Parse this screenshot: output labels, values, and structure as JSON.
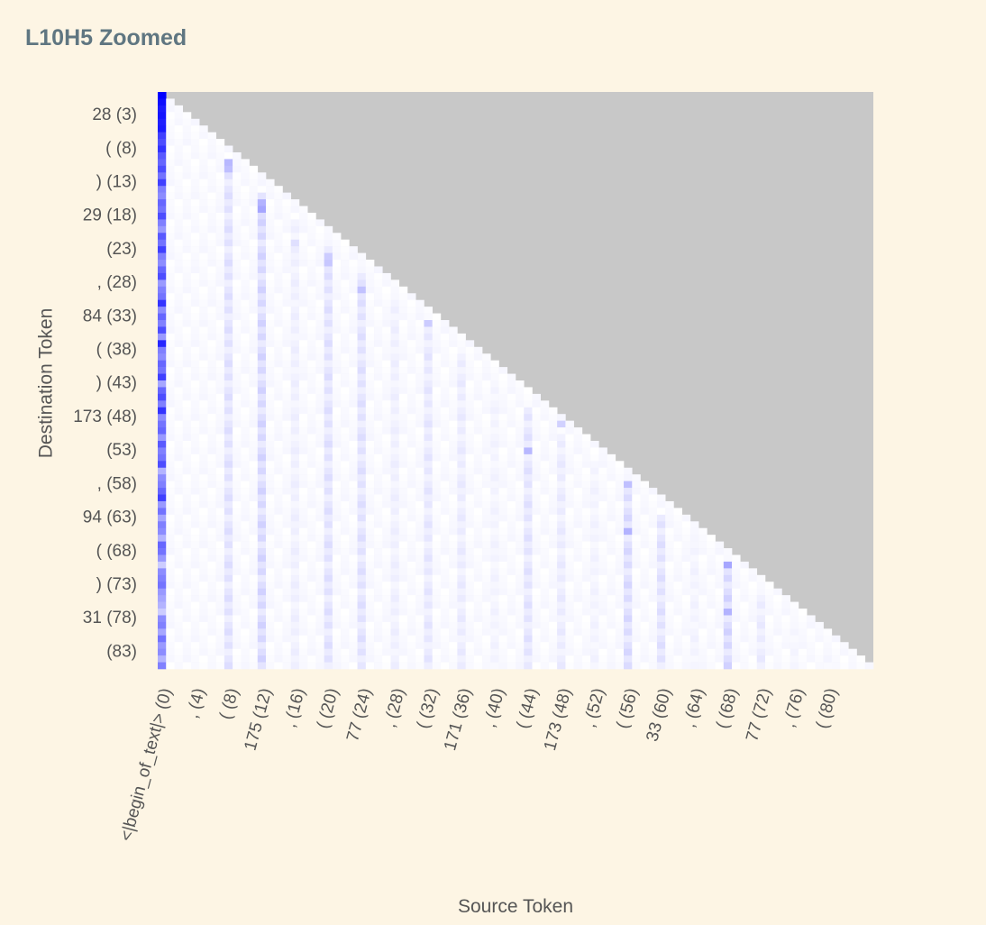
{
  "title": "L10H5 Zoomed",
  "chart_data": {
    "type": "heatmap",
    "title": "L10H5 Zoomed",
    "xlabel": "Source Token",
    "ylabel": "Destination Token",
    "n_tokens": 86,
    "masked_color": "#c8c8c8",
    "low_color": "#ffffff",
    "high_color": "#0000ff",
    "y_ticks": [
      {
        "index": 3,
        "label": "28 (3)"
      },
      {
        "index": 8,
        "label": "( (8)"
      },
      {
        "index": 13,
        "label": ") (13)"
      },
      {
        "index": 18,
        "label": "29 (18)"
      },
      {
        "index": 23,
        "label": "(23)"
      },
      {
        "index": 28,
        "label": ", (28)"
      },
      {
        "index": 33,
        "label": "84 (33)"
      },
      {
        "index": 38,
        "label": "( (38)"
      },
      {
        "index": 43,
        "label": ") (43)"
      },
      {
        "index": 48,
        "label": "173 (48)"
      },
      {
        "index": 53,
        "label": "(53)"
      },
      {
        "index": 58,
        "label": ", (58)"
      },
      {
        "index": 63,
        "label": "94 (63)"
      },
      {
        "index": 68,
        "label": "( (68)"
      },
      {
        "index": 73,
        "label": ") (73)"
      },
      {
        "index": 78,
        "label": "31 (78)"
      },
      {
        "index": 83,
        "label": "(83)"
      }
    ],
    "x_ticks": [
      {
        "index": 0,
        "label": "<|begin_of_text|> (0)"
      },
      {
        "index": 4,
        "label": ", (4)"
      },
      {
        "index": 8,
        "label": "( (8)"
      },
      {
        "index": 12,
        "label": "175 (12)"
      },
      {
        "index": 16,
        "label": ", (16)"
      },
      {
        "index": 20,
        "label": "( (20)"
      },
      {
        "index": 24,
        "label": "77 (24)"
      },
      {
        "index": 28,
        "label": ", (28)"
      },
      {
        "index": 32,
        "label": "( (32)"
      },
      {
        "index": 36,
        "label": "171 (36)"
      },
      {
        "index": 40,
        "label": ", (40)"
      },
      {
        "index": 44,
        "label": "( (44)"
      },
      {
        "index": 48,
        "label": "173 (48)"
      },
      {
        "index": 52,
        "label": ", (52)"
      },
      {
        "index": 56,
        "label": "( (56)"
      },
      {
        "index": 60,
        "label": "33 (60)"
      },
      {
        "index": 64,
        "label": ", (64)"
      },
      {
        "index": 68,
        "label": "( (68)"
      },
      {
        "index": 72,
        "label": "77 (72)"
      },
      {
        "index": 76,
        "label": ", (76)"
      },
      {
        "index": 80,
        "label": "( (80)"
      }
    ],
    "bos_column_weights": [
      1.0,
      0.95,
      0.9,
      0.92,
      0.88,
      0.9,
      0.75,
      0.7,
      0.8,
      0.65,
      0.6,
      0.7,
      0.55,
      0.75,
      0.5,
      0.45,
      0.6,
      0.55,
      0.7,
      0.5,
      0.4,
      0.65,
      0.55,
      0.75,
      0.5,
      0.45,
      0.6,
      0.7,
      0.4,
      0.5,
      0.55,
      0.8,
      0.45,
      0.6,
      0.5,
      0.7,
      0.4,
      0.85,
      0.5,
      0.45,
      0.6,
      0.55,
      0.75,
      0.35,
      0.6,
      0.7,
      0.5,
      0.8,
      0.45,
      0.55,
      0.6,
      0.4,
      0.65,
      0.5,
      0.55,
      0.7,
      0.3,
      0.45,
      0.5,
      0.6,
      0.75,
      0.4,
      0.55,
      0.35,
      0.5,
      0.45,
      0.3,
      0.6,
      0.55,
      0.4,
      0.2,
      0.45,
      0.5,
      0.55,
      0.4,
      0.35,
      0.3,
      0.2,
      0.45,
      0.5,
      0.35,
      0.55,
      0.4,
      0.45,
      0.3,
      0.5
    ],
    "highlight_columns": [
      {
        "col": 8,
        "weight": 0.15
      },
      {
        "col": 12,
        "weight": 0.2
      },
      {
        "col": 16,
        "weight": 0.08
      },
      {
        "col": 20,
        "weight": 0.15
      },
      {
        "col": 24,
        "weight": 0.15
      },
      {
        "col": 28,
        "weight": 0.08
      },
      {
        "col": 32,
        "weight": 0.12
      },
      {
        "col": 36,
        "weight": 0.1
      },
      {
        "col": 40,
        "weight": 0.06
      },
      {
        "col": 44,
        "weight": 0.14
      },
      {
        "col": 48,
        "weight": 0.1
      },
      {
        "col": 52,
        "weight": 0.06
      },
      {
        "col": 56,
        "weight": 0.18
      },
      {
        "col": 60,
        "weight": 0.15
      },
      {
        "col": 64,
        "weight": 0.06
      },
      {
        "col": 68,
        "weight": 0.2
      },
      {
        "col": 72,
        "weight": 0.1
      },
      {
        "col": 76,
        "weight": 0.05
      },
      {
        "col": 80,
        "weight": 0.05
      }
    ],
    "hot_cells": [
      {
        "row": 10,
        "col": 8,
        "weight": 0.28
      },
      {
        "row": 11,
        "col": 8,
        "weight": 0.25
      },
      {
        "row": 16,
        "col": 12,
        "weight": 0.3
      },
      {
        "row": 17,
        "col": 12,
        "weight": 0.35
      },
      {
        "row": 22,
        "col": 16,
        "weight": 0.12
      },
      {
        "row": 24,
        "col": 20,
        "weight": 0.2
      },
      {
        "row": 25,
        "col": 20,
        "weight": 0.22
      },
      {
        "row": 29,
        "col": 24,
        "weight": 0.24
      },
      {
        "row": 34,
        "col": 32,
        "weight": 0.2
      },
      {
        "row": 49,
        "col": 48,
        "weight": 0.18
      },
      {
        "row": 53,
        "col": 44,
        "weight": 0.28
      },
      {
        "row": 58,
        "col": 56,
        "weight": 0.25
      },
      {
        "row": 65,
        "col": 56,
        "weight": 0.3
      },
      {
        "row": 70,
        "col": 68,
        "weight": 0.35
      },
      {
        "row": 77,
        "col": 68,
        "weight": 0.3
      }
    ]
  }
}
